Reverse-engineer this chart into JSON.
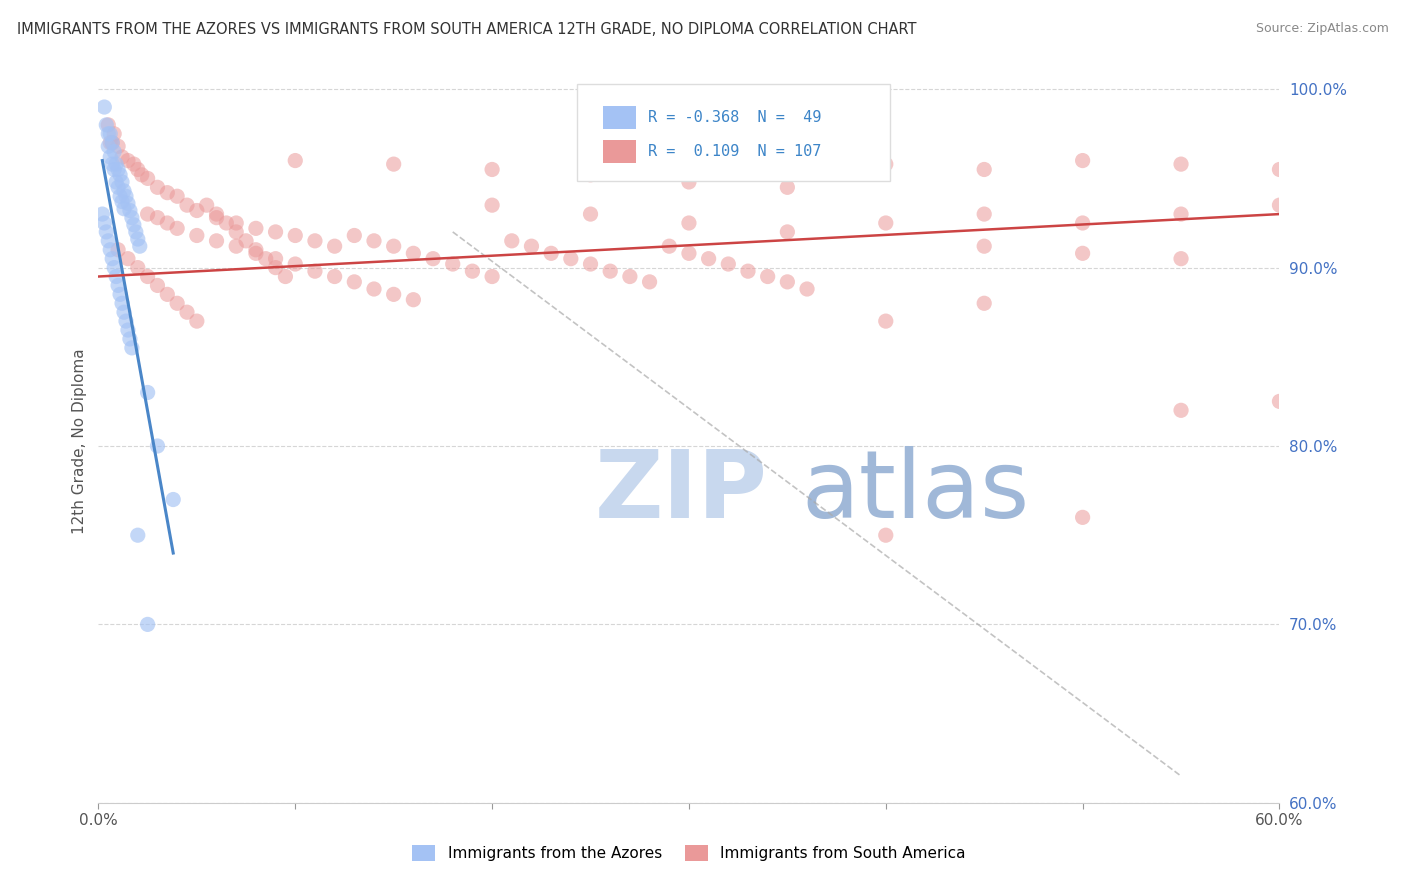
{
  "title": "IMMIGRANTS FROM THE AZORES VS IMMIGRANTS FROM SOUTH AMERICA 12TH GRADE, NO DIPLOMA CORRELATION CHART",
  "source": "Source: ZipAtlas.com",
  "ylabel": "12th Grade, No Diploma",
  "x_min": 0.0,
  "x_max": 0.6,
  "y_min": 0.6,
  "y_max": 1.005,
  "x_ticks": [
    0.0,
    0.1,
    0.2,
    0.3,
    0.4,
    0.5,
    0.6
  ],
  "x_ticklabels": [
    "0.0%",
    "",
    "",
    "",
    "",
    "",
    "60.0%"
  ],
  "y_ticks": [
    0.6,
    0.7,
    0.8,
    0.9,
    1.0
  ],
  "y_ticklabels": [
    "60.0%",
    "70.0%",
    "80.0%",
    "90.0%",
    "100.0%"
  ],
  "legend_blue_label": "Immigrants from the Azores",
  "legend_pink_label": "Immigrants from South America",
  "R_blue": -0.368,
  "N_blue": 49,
  "R_pink": 0.109,
  "N_pink": 107,
  "blue_color": "#a4c2f4",
  "pink_color": "#ea9999",
  "blue_line_color": "#4a86c8",
  "pink_line_color": "#cc4444",
  "blue_scatter": [
    [
      0.003,
      0.99
    ],
    [
      0.004,
      0.98
    ],
    [
      0.005,
      0.975
    ],
    [
      0.005,
      0.968
    ],
    [
      0.006,
      0.975
    ],
    [
      0.006,
      0.962
    ],
    [
      0.007,
      0.97
    ],
    [
      0.007,
      0.958
    ],
    [
      0.008,
      0.965
    ],
    [
      0.008,
      0.955
    ],
    [
      0.009,
      0.958
    ],
    [
      0.009,
      0.948
    ],
    [
      0.01,
      0.955
    ],
    [
      0.01,
      0.945
    ],
    [
      0.011,
      0.952
    ],
    [
      0.011,
      0.94
    ],
    [
      0.012,
      0.948
    ],
    [
      0.012,
      0.937
    ],
    [
      0.013,
      0.943
    ],
    [
      0.013,
      0.933
    ],
    [
      0.014,
      0.94
    ],
    [
      0.015,
      0.936
    ],
    [
      0.016,
      0.932
    ],
    [
      0.017,
      0.928
    ],
    [
      0.018,
      0.924
    ],
    [
      0.019,
      0.92
    ],
    [
      0.02,
      0.916
    ],
    [
      0.021,
      0.912
    ],
    [
      0.002,
      0.93
    ],
    [
      0.003,
      0.925
    ],
    [
      0.004,
      0.92
    ],
    [
      0.005,
      0.915
    ],
    [
      0.006,
      0.91
    ],
    [
      0.007,
      0.905
    ],
    [
      0.008,
      0.9
    ],
    [
      0.009,
      0.895
    ],
    [
      0.01,
      0.89
    ],
    [
      0.011,
      0.885
    ],
    [
      0.012,
      0.88
    ],
    [
      0.013,
      0.875
    ],
    [
      0.014,
      0.87
    ],
    [
      0.015,
      0.865
    ],
    [
      0.016,
      0.86
    ],
    [
      0.017,
      0.855
    ],
    [
      0.025,
      0.83
    ],
    [
      0.03,
      0.8
    ],
    [
      0.038,
      0.77
    ],
    [
      0.02,
      0.75
    ],
    [
      0.025,
      0.7
    ]
  ],
  "pink_scatter": [
    [
      0.005,
      0.98
    ],
    [
      0.007,
      0.97
    ],
    [
      0.01,
      0.968
    ],
    [
      0.012,
      0.962
    ],
    [
      0.015,
      0.96
    ],
    [
      0.018,
      0.958
    ],
    [
      0.02,
      0.955
    ],
    [
      0.022,
      0.952
    ],
    [
      0.025,
      0.95
    ],
    [
      0.008,
      0.975
    ],
    [
      0.006,
      0.97
    ],
    [
      0.03,
      0.945
    ],
    [
      0.035,
      0.942
    ],
    [
      0.04,
      0.94
    ],
    [
      0.045,
      0.935
    ],
    [
      0.05,
      0.932
    ],
    [
      0.06,
      0.928
    ],
    [
      0.07,
      0.925
    ],
    [
      0.08,
      0.922
    ],
    [
      0.09,
      0.92
    ],
    [
      0.1,
      0.918
    ],
    [
      0.11,
      0.915
    ],
    [
      0.12,
      0.912
    ],
    [
      0.025,
      0.93
    ],
    [
      0.03,
      0.928
    ],
    [
      0.035,
      0.925
    ],
    [
      0.04,
      0.922
    ],
    [
      0.05,
      0.918
    ],
    [
      0.06,
      0.915
    ],
    [
      0.07,
      0.912
    ],
    [
      0.08,
      0.908
    ],
    [
      0.09,
      0.905
    ],
    [
      0.1,
      0.902
    ],
    [
      0.11,
      0.898
    ],
    [
      0.12,
      0.895
    ],
    [
      0.13,
      0.918
    ],
    [
      0.14,
      0.915
    ],
    [
      0.15,
      0.912
    ],
    [
      0.16,
      0.908
    ],
    [
      0.17,
      0.905
    ],
    [
      0.18,
      0.902
    ],
    [
      0.19,
      0.898
    ],
    [
      0.2,
      0.895
    ],
    [
      0.13,
      0.892
    ],
    [
      0.14,
      0.888
    ],
    [
      0.15,
      0.885
    ],
    [
      0.16,
      0.882
    ],
    [
      0.21,
      0.915
    ],
    [
      0.22,
      0.912
    ],
    [
      0.23,
      0.908
    ],
    [
      0.24,
      0.905
    ],
    [
      0.25,
      0.902
    ],
    [
      0.26,
      0.898
    ],
    [
      0.27,
      0.895
    ],
    [
      0.28,
      0.892
    ],
    [
      0.29,
      0.912
    ],
    [
      0.3,
      0.908
    ],
    [
      0.31,
      0.905
    ],
    [
      0.32,
      0.902
    ],
    [
      0.33,
      0.898
    ],
    [
      0.34,
      0.895
    ],
    [
      0.35,
      0.892
    ],
    [
      0.36,
      0.888
    ],
    [
      0.01,
      0.91
    ],
    [
      0.015,
      0.905
    ],
    [
      0.02,
      0.9
    ],
    [
      0.025,
      0.895
    ],
    [
      0.03,
      0.89
    ],
    [
      0.035,
      0.885
    ],
    [
      0.04,
      0.88
    ],
    [
      0.045,
      0.875
    ],
    [
      0.05,
      0.87
    ],
    [
      0.055,
      0.935
    ],
    [
      0.06,
      0.93
    ],
    [
      0.065,
      0.925
    ],
    [
      0.07,
      0.92
    ],
    [
      0.075,
      0.915
    ],
    [
      0.08,
      0.91
    ],
    [
      0.085,
      0.905
    ],
    [
      0.09,
      0.9
    ],
    [
      0.095,
      0.895
    ],
    [
      0.2,
      0.935
    ],
    [
      0.25,
      0.93
    ],
    [
      0.3,
      0.925
    ],
    [
      0.35,
      0.92
    ],
    [
      0.4,
      0.925
    ],
    [
      0.45,
      0.93
    ],
    [
      0.5,
      0.925
    ],
    [
      0.55,
      0.93
    ],
    [
      0.6,
      0.935
    ],
    [
      0.45,
      0.912
    ],
    [
      0.5,
      0.908
    ],
    [
      0.55,
      0.905
    ],
    [
      0.4,
      0.87
    ],
    [
      0.45,
      0.88
    ],
    [
      0.5,
      0.76
    ],
    [
      0.4,
      0.75
    ],
    [
      0.55,
      0.82
    ],
    [
      0.6,
      0.825
    ],
    [
      0.1,
      0.96
    ],
    [
      0.15,
      0.958
    ],
    [
      0.2,
      0.955
    ],
    [
      0.25,
      0.952
    ],
    [
      0.3,
      0.948
    ],
    [
      0.35,
      0.945
    ],
    [
      0.4,
      0.958
    ],
    [
      0.45,
      0.955
    ],
    [
      0.5,
      0.96
    ],
    [
      0.55,
      0.958
    ],
    [
      0.6,
      0.955
    ]
  ],
  "blue_line_x": [
    0.002,
    0.038
  ],
  "blue_line_y": [
    0.96,
    0.74
  ],
  "pink_line_x": [
    0.0,
    0.6
  ],
  "pink_line_y": [
    0.895,
    0.93
  ],
  "dashed_line_x": [
    0.18,
    0.55
  ],
  "dashed_line_y": [
    0.92,
    0.615
  ],
  "watermark_zip": "ZIP",
  "watermark_atlas": "atlas",
  "watermark_color": "#ccd9ee",
  "watermark_fontsize": 68
}
